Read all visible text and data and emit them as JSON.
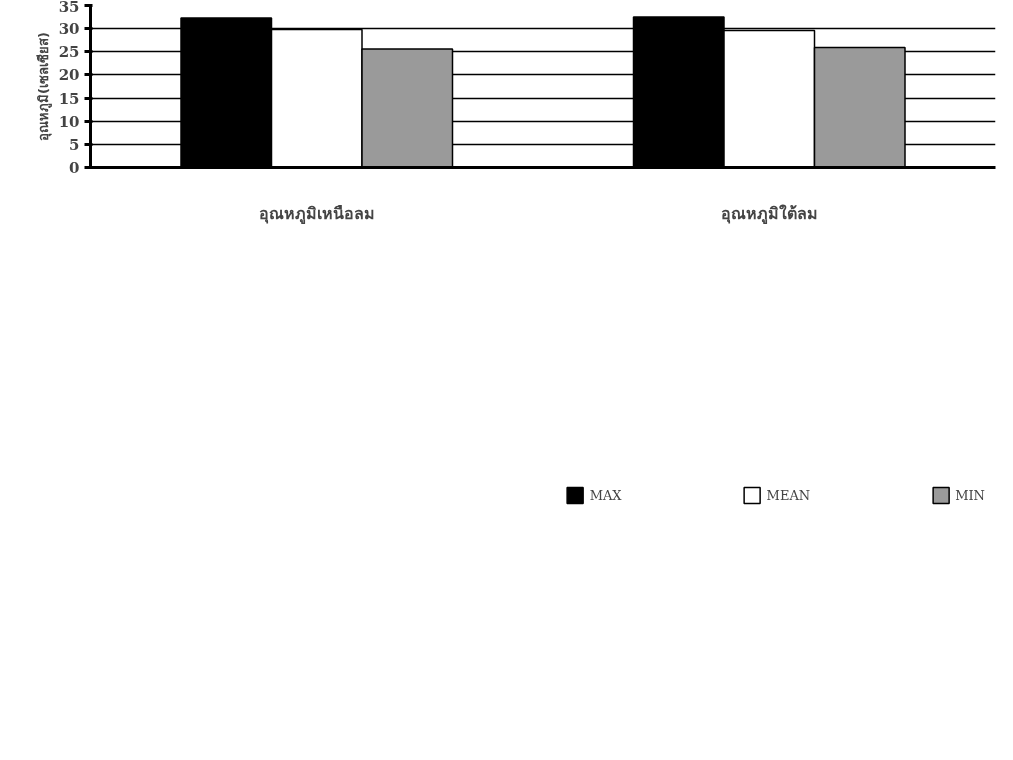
{
  "chart_data": {
    "type": "bar",
    "ylabel": "อุณหภูมิ(เซลเซียส)",
    "categories": [
      "อุณหภูมิเหนือลม",
      "อุณหภูมิใต้ลม"
    ],
    "series": [
      {
        "name": "MAX",
        "color": "#000000",
        "values": [
          32.3,
          32.5
        ]
      },
      {
        "name": "MEAN",
        "color": "#ffffff",
        "values": [
          29.8,
          29.6
        ]
      },
      {
        "name": "MIN",
        "color": "#9a9a9a",
        "values": [
          25.6,
          25.9
        ]
      }
    ],
    "ylim": [
      0,
      35
    ],
    "yticks": [
      0,
      5,
      10,
      15,
      20,
      25,
      30,
      35
    ],
    "grid": "y",
    "legend": "bottom"
  }
}
